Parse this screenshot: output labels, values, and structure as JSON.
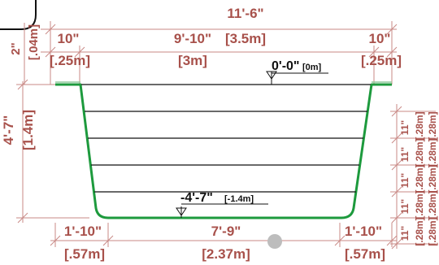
{
  "overall_width": {
    "imperial": "11'-6\"",
    "metric": "[3.5m]"
  },
  "ledge_left": {
    "imperial": "10\"",
    "metric": "[.25m]"
  },
  "inner_top_width": {
    "imperial": "9'-10\"",
    "metric": "[3m]"
  },
  "ledge_right": {
    "imperial": "10\"",
    "metric": "[.25m]"
  },
  "rim_height": {
    "imperial": "2\"",
    "metric": "[.04m]"
  },
  "total_depth": {
    "imperial": "4'-7\"",
    "metric": "[1.4m]"
  },
  "top_level": {
    "imperial": "0'-0\"",
    "metric": "[0m]"
  },
  "bottom_level": {
    "imperial": "-4'-7\"",
    "metric": "[-1.4m]"
  },
  "bottom_left": {
    "imperial": "1'-10\"",
    "metric": "[.57m]"
  },
  "bottom_width": {
    "imperial": "7'-9\"",
    "metric": "[2.37m]"
  },
  "bottom_right": {
    "imperial": "1'-10\"",
    "metric": "[.57m]"
  },
  "step": {
    "imperial": "11\"",
    "metric": "[.28m]"
  },
  "colors": {
    "dimension": "#a8514b",
    "wall": "#1d9a3d",
    "level": "#111111"
  }
}
